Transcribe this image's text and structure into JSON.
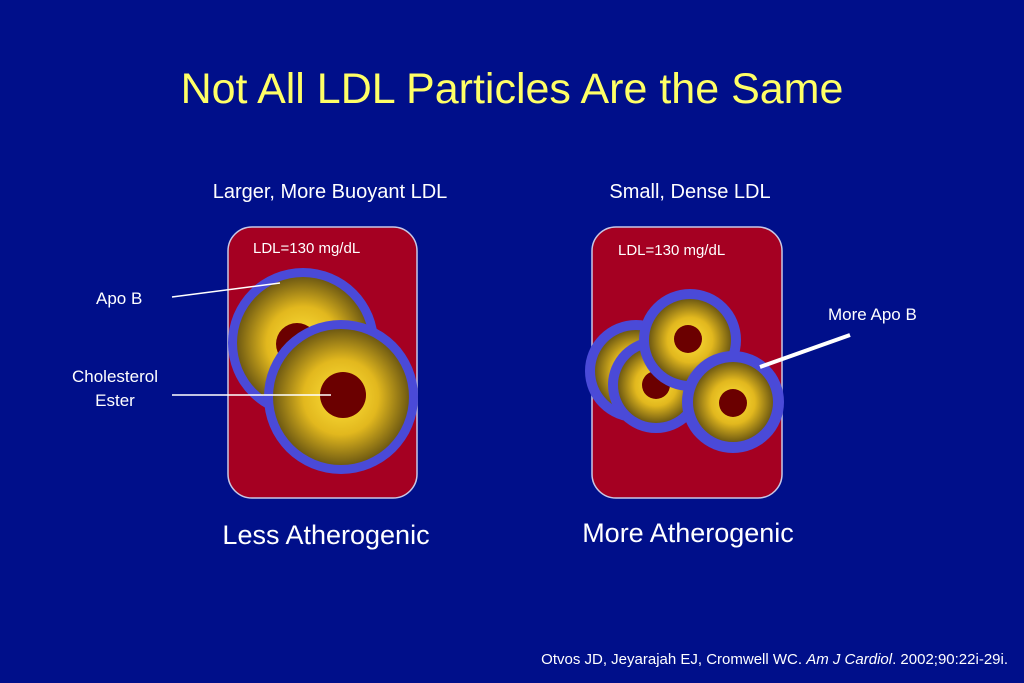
{
  "title": "Not All LDL Particles Are the Same",
  "left_panel": {
    "heading": "Larger, More Buoyant LDL",
    "ldl_label": "LDL=130 mg/dL",
    "caption": "Less Atherogenic"
  },
  "right_panel": {
    "heading": "Small, Dense LDL",
    "ldl_label": "LDL=130 mg/dL",
    "caption": "More Atherogenic"
  },
  "callouts": {
    "apo_b": "Apo B",
    "cholesterol_line1": "Cholesterol",
    "cholesterol_line2": "Ester",
    "more_apo_b": "More Apo B"
  },
  "citation": {
    "authors": "Otvos JD, Jeyarajah EJ, Cromwell WC.",
    "journal": "Am J Cardiol",
    "details": ". 2002;90:22i-29i."
  },
  "colors": {
    "background": "#000f8a",
    "title": "#ffff66",
    "vessel": "#a50022",
    "apo_b_shell": "#4a4ad8",
    "particle_core": "#6b0000",
    "cholesterol_ester": "#f0d22a"
  }
}
